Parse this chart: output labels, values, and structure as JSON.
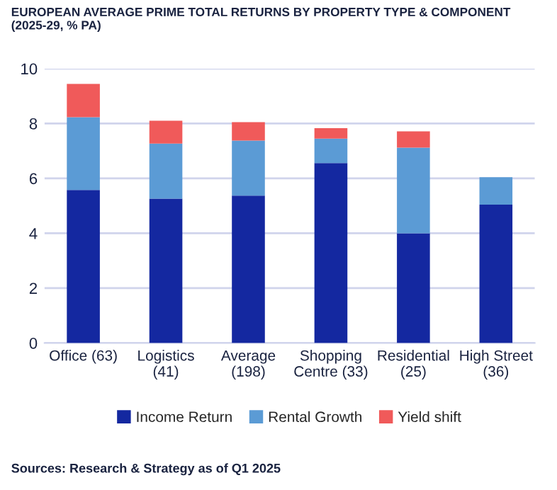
{
  "chart_data": {
    "type": "bar",
    "stacked": true,
    "title": "EUROPEAN AVERAGE PRIME TOTAL RETURNS BY PROPERTY TYPE & COMPONENT\n(2025-29, % PA)",
    "categories": [
      "Office (63)",
      "Logistics\n(41)",
      "Average\n(198)",
      "Shopping\nCentre (33)",
      "Residential\n(25)",
      "High Street\n(36)"
    ],
    "series": [
      {
        "name": "Income Return",
        "color": "#1428a0",
        "values": [
          5.58,
          5.26,
          5.37,
          6.56,
          4.0,
          5.04
        ]
      },
      {
        "name": "Rental Growth",
        "color": "#5b9bd5",
        "values": [
          2.65,
          2.01,
          2.01,
          0.89,
          3.12,
          1.0
        ]
      },
      {
        "name": "Yield shift",
        "color": "#f05a5a",
        "values": [
          1.21,
          0.83,
          0.67,
          0.38,
          0.59,
          null
        ]
      }
    ],
    "ylim": [
      0,
      10
    ],
    "yticks": [
      0,
      2,
      4,
      6,
      8,
      10
    ],
    "grid": "y",
    "legend": "bottom",
    "annotations": [
      "Sources: Research & Strategy as of Q1 2025"
    ]
  }
}
